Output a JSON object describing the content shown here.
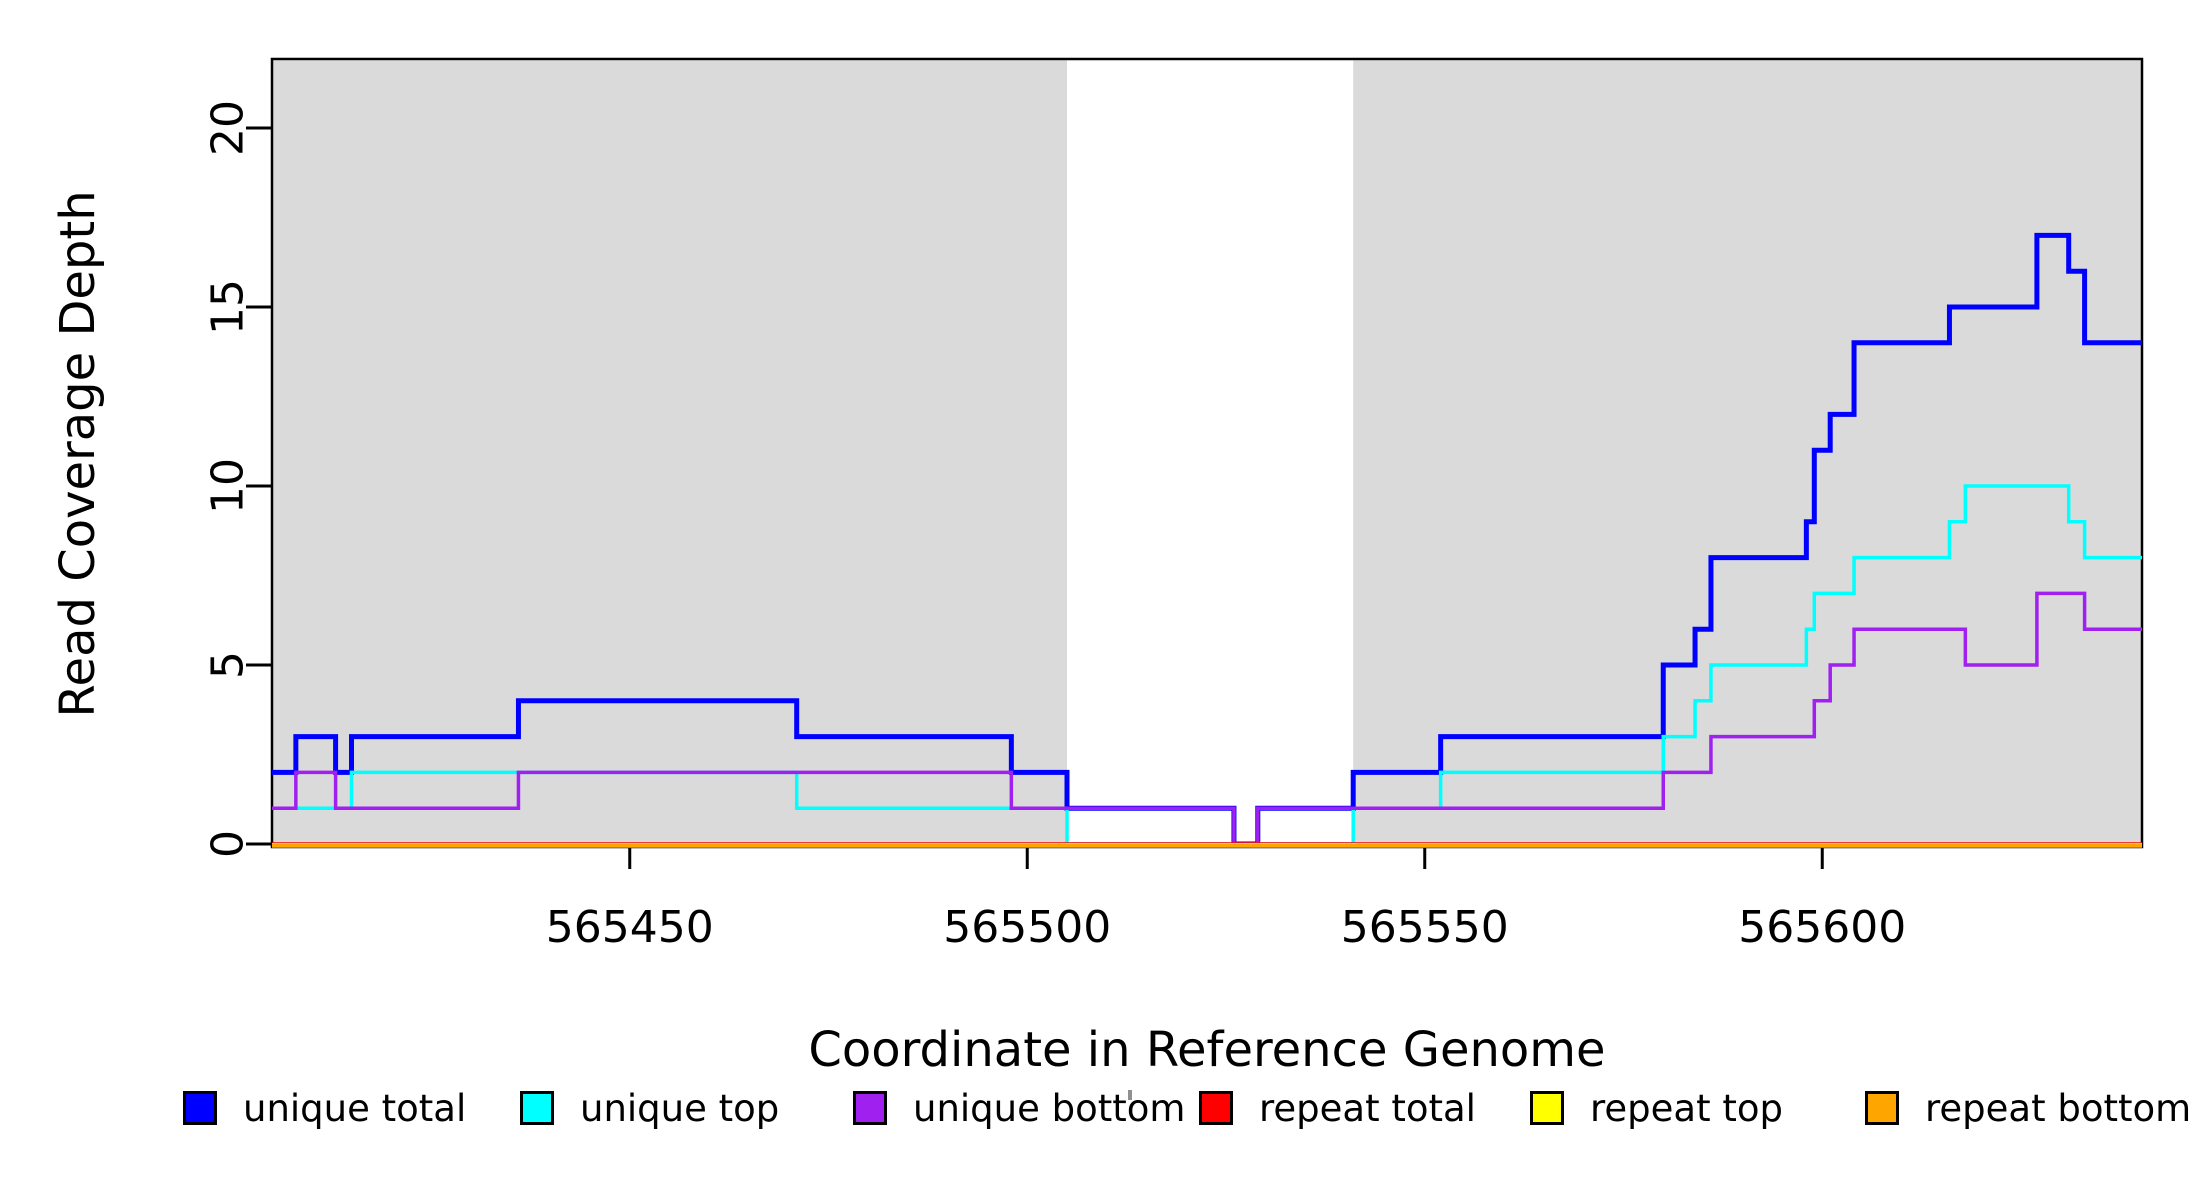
{
  "figure": {
    "kind": "genome read coverage step plot"
  },
  "chart_data": {
    "type": "line",
    "line_style": "step",
    "title": "",
    "xlabel": "Coordinate in Reference Genome",
    "ylabel": "Read Coverage Depth",
    "xlim": [
      565405,
      565640
    ],
    "ylim": [
      0,
      21.9
    ],
    "x_ticks": [
      565450,
      565500,
      565550,
      565600
    ],
    "y_ticks": [
      0,
      5,
      10,
      15,
      20
    ],
    "grid": false,
    "legend_position": "bottom",
    "plot_bg_color": "#ffffff",
    "shaded_region_color": "#DADADA",
    "background_shaded_regions": [
      {
        "x_from": 565405,
        "x_to": 565505
      },
      {
        "x_from": 565541,
        "x_to": 565641
      }
    ],
    "series": [
      {
        "name": "unique total",
        "color": "#0000FF",
        "line_width": 5,
        "start_value": 2,
        "steps": [
          [
            565408,
            3
          ],
          [
            565413,
            2
          ],
          [
            565415,
            3
          ],
          [
            565436,
            4
          ],
          [
            565471,
            3
          ],
          [
            565498,
            2
          ],
          [
            565505,
            1
          ],
          [
            565526,
            0
          ],
          [
            565529,
            1
          ],
          [
            565541,
            2
          ],
          [
            565552,
            3
          ],
          [
            565580,
            5
          ],
          [
            565584,
            6
          ],
          [
            565586,
            8
          ],
          [
            565598,
            9
          ],
          [
            565599,
            11
          ],
          [
            565601,
            12
          ],
          [
            565604,
            14
          ],
          [
            565616,
            15
          ],
          [
            565627,
            17
          ],
          [
            565631,
            16
          ],
          [
            565633,
            14
          ]
        ]
      },
      {
        "name": "unique top",
        "color": "#00FFFF",
        "line_width": 3.5,
        "start_value": 1,
        "steps": [
          [
            565415,
            2
          ],
          [
            565471,
            1
          ],
          [
            565505,
            0
          ],
          [
            565541,
            1
          ],
          [
            565552,
            2
          ],
          [
            565580,
            3
          ],
          [
            565584,
            4
          ],
          [
            565586,
            5
          ],
          [
            565598,
            6
          ],
          [
            565599,
            7
          ],
          [
            565604,
            8
          ],
          [
            565616,
            9
          ],
          [
            565618,
            10
          ],
          [
            565631,
            9
          ],
          [
            565633,
            8
          ]
        ]
      },
      {
        "name": "unique bottom",
        "color": "#A020F0",
        "line_width": 3.5,
        "start_value": 1,
        "steps": [
          [
            565408,
            2
          ],
          [
            565413,
            1
          ],
          [
            565436,
            2
          ],
          [
            565498,
            1
          ],
          [
            565526,
            0
          ],
          [
            565529,
            1
          ],
          [
            565580,
            2
          ],
          [
            565586,
            3
          ],
          [
            565599,
            4
          ],
          [
            565601,
            5
          ],
          [
            565604,
            6
          ],
          [
            565618,
            5
          ],
          [
            565627,
            7
          ],
          [
            565633,
            6
          ]
        ]
      },
      {
        "name": "repeat total",
        "color": "#FF0000",
        "line_width": 3.5,
        "start_value": 0,
        "steps": []
      },
      {
        "name": "repeat top",
        "color": "#FFFF00",
        "line_width": 3.5,
        "start_value": 0,
        "steps": []
      },
      {
        "name": "repeat bottom",
        "color": "#FFA500",
        "line_width": 4.2,
        "start_value": 0,
        "steps": []
      }
    ]
  }
}
